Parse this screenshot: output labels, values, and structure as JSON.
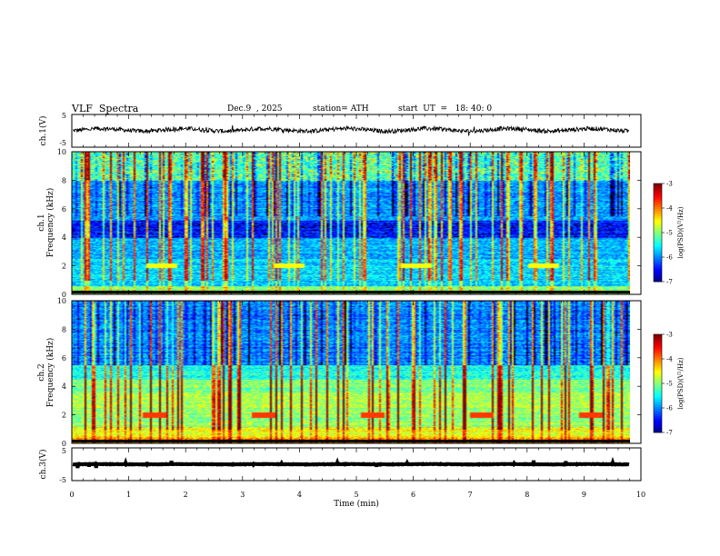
{
  "header": {
    "title": "VLF  Spectra",
    "date": "Dec.9  , 2025",
    "station": "station= ATH",
    "start_ut": "start  UT  =   18: 40: 0"
  },
  "chart_data": [
    {
      "type": "line",
      "panel": "ch1-waveform",
      "ylabel": "ch.1(V)",
      "ylim": [
        -5,
        5
      ],
      "y_ticks": [
        "5",
        "-5"
      ],
      "x_range_min": [
        0,
        9.8
      ],
      "baseline_v": 0.3,
      "series_color": "#000000"
    },
    {
      "type": "heatmap",
      "panel": "ch1-spectrogram",
      "ylabel": "ch.1\nFrequency  (kHz)",
      "ylabel_top": "ch.1",
      "ylabel_bottom": "Frequency  (kHz)",
      "ylim": [
        0,
        10
      ],
      "y_ticks": [
        "0",
        "2",
        "4",
        "6",
        "8",
        "10"
      ],
      "colorbar": {
        "label": "log(PSD)(V²/Hz)",
        "range": [
          -7,
          -3
        ],
        "ticks": [
          "-3",
          "-4",
          "-5",
          "-6",
          "-7"
        ]
      }
    },
    {
      "type": "heatmap",
      "panel": "ch2-spectrogram",
      "ylabel_top": "ch.2",
      "ylabel_bottom": "Frequency  (kHz)",
      "ylim": [
        0,
        10
      ],
      "y_ticks": [
        "0",
        "2",
        "4",
        "6",
        "8",
        "10"
      ],
      "colorbar": {
        "label": "log(PSD)(V²/Hz)",
        "range": [
          -7,
          -3
        ],
        "ticks": [
          "-3",
          "-4",
          "-5",
          "-6",
          "-7"
        ]
      }
    },
    {
      "type": "line",
      "panel": "ch3-waveform",
      "ylabel": "ch.3(V)",
      "ylim": [
        -5,
        5
      ],
      "y_ticks": [
        "5",
        "-5"
      ],
      "x_range_min": [
        0,
        9.8
      ],
      "baseline_v": 0,
      "series_color": "#000000"
    }
  ],
  "x_axis": {
    "label": "Time  (min)",
    "range": [
      0,
      10
    ],
    "ticks": [
      "0",
      "1",
      "2",
      "3",
      "4",
      "5",
      "6",
      "7",
      "8",
      "9",
      "10"
    ]
  }
}
